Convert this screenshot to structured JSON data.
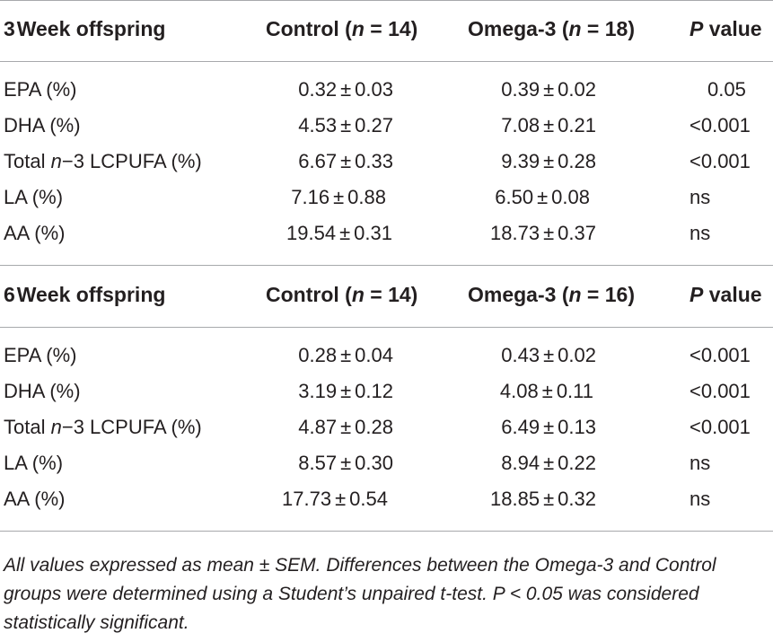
{
  "sections": [
    {
      "header": {
        "group_label_num": "3",
        "group_label_rest": "Week offspring",
        "control_prefix": "Control (",
        "control_n": "n",
        "control_suffix": " = 14)",
        "omega_prefix": "Omega-3 (",
        "omega_n": "n",
        "omega_suffix": " = 18)",
        "p_letter": "P",
        "p_rest": " value"
      },
      "rows": [
        {
          "label": "EPA (%)",
          "control_mean": "0.32",
          "control_sem": "0.03",
          "omega_mean": "0.39",
          "omega_sem": "0.02",
          "p": "0.05"
        },
        {
          "label": "DHA (%)",
          "control_mean": "4.53",
          "control_sem": "0.27",
          "omega_mean": "7.08",
          "omega_sem": "0.21",
          "p": "<0.001"
        },
        {
          "label_pre": "Total ",
          "label_ital": "n",
          "label_post": "−3 LCPUFA (%)",
          "control_mean": "6.67",
          "control_sem": "0.33",
          "omega_mean": "9.39",
          "omega_sem": "0.28",
          "p": "<0.001"
        },
        {
          "label": "LA (%)",
          "control_mean": "7.16",
          "control_sem": "0.88",
          "omega_mean": "6.50",
          "omega_sem": "0.08",
          "p": "ns"
        },
        {
          "label": "AA (%)",
          "control_mean": "19.54",
          "control_sem": "0.31",
          "omega_mean": "18.73",
          "omega_sem": "0.37",
          "p": "ns"
        }
      ]
    },
    {
      "header": {
        "group_label_num": "6",
        "group_label_rest": "Week offspring",
        "control_prefix": "Control (",
        "control_n": "n",
        "control_suffix": " = 14)",
        "omega_prefix": "Omega-3 (",
        "omega_n": "n",
        "omega_suffix": " = 16)",
        "p_letter": "P",
        "p_rest": " value"
      },
      "rows": [
        {
          "label": "EPA (%)",
          "control_mean": "0.28",
          "control_sem": "0.04",
          "omega_mean": "0.43",
          "omega_sem": "0.02",
          "p": "<0.001"
        },
        {
          "label": "DHA (%)",
          "control_mean": "3.19",
          "control_sem": "0.12",
          "omega_mean": "4.08",
          "omega_sem": "0.11",
          "p": "<0.001"
        },
        {
          "label_pre": "Total ",
          "label_ital": "n",
          "label_post": "−3 LCPUFA (%)",
          "control_mean": "4.87",
          "control_sem": "0.28",
          "omega_mean": "6.49",
          "omega_sem": "0.13",
          "p": "<0.001"
        },
        {
          "label": "LA (%)",
          "control_mean": "8.57",
          "control_sem": "0.30",
          "omega_mean": "8.94",
          "omega_sem": "0.22",
          "p": "ns"
        },
        {
          "label": "AA (%)",
          "control_mean": "17.73",
          "control_sem": "0.54",
          "omega_mean": "18.85",
          "omega_sem": "0.32",
          "p": "ns"
        }
      ]
    }
  ],
  "pm_symbol": "±",
  "footnote": "All values expressed as mean ± SEM. Differences between the Omega-3 and Control groups were determined using a Student’s unpaired t-test. P < 0.05 was considered statistically significant.",
  "colors": {
    "text": "#231f20",
    "rule": "#a7a9ac",
    "background": "#ffffff"
  }
}
